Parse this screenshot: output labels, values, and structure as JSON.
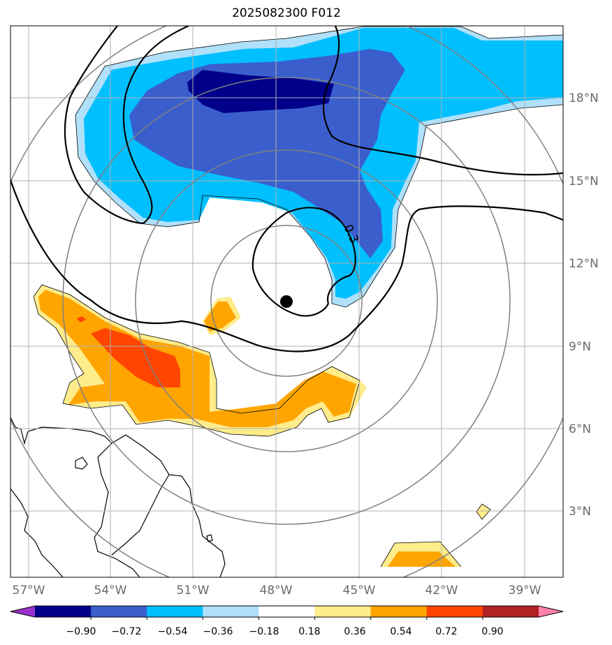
{
  "title": "2025082300 F012",
  "lat_labels": [
    "18°N",
    "15°N",
    "12°N",
    "9°N",
    "6°N",
    "3°N"
  ],
  "lon_labels": [
    "57°W",
    "54°W",
    "51°W",
    "48°W",
    "45°W",
    "42°W",
    "39°W"
  ],
  "contour_label": "0.3",
  "colorbar": {
    "ticks": [
      "−0.90",
      "−0.72",
      "−0.54",
      "−0.36",
      "−0.18",
      "0.18",
      "0.36",
      "0.54",
      "0.72",
      "0.90"
    ],
    "colors": [
      "#9932cc",
      "#00008b",
      "#3a5fcd",
      "#00bfff",
      "#b0e0fa",
      "#ffffff",
      "#ffec8b",
      "#ffa500",
      "#ff4500",
      "#b22222",
      "#ff82ab"
    ]
  },
  "colors": {
    "dark_blue": "#00008b",
    "mid_blue": "#3a5fcd",
    "cyan": "#00bfff",
    "light_blue": "#b0e0fa",
    "light_yellow": "#ffec8b",
    "orange": "#ffa500",
    "red_orange": "#ff4500",
    "grid": "#b0b0b0",
    "rings": "#808080"
  }
}
